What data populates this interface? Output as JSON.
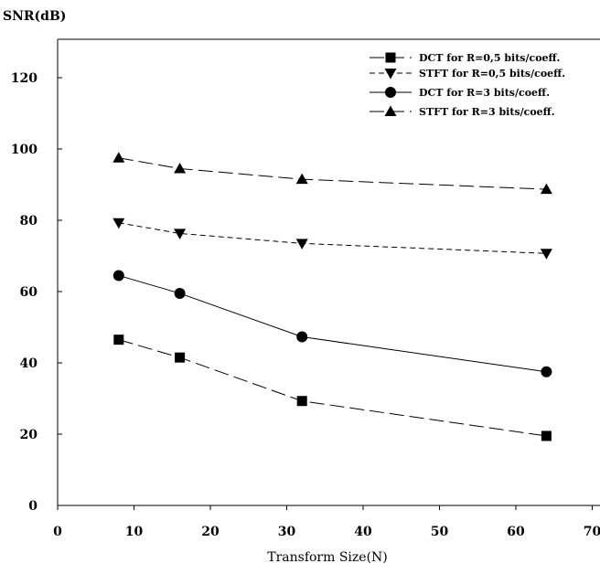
{
  "chart_data": {
    "type": "line",
    "title": "",
    "xlabel": "Transform Size(N)",
    "ylabel": "SNR(dB)",
    "xlim": [
      0,
      70
    ],
    "ylim": [
      0,
      130
    ],
    "xticks": [
      0,
      10,
      20,
      30,
      40,
      50,
      60,
      70
    ],
    "yticks": [
      0,
      20,
      40,
      60,
      80,
      100,
      120
    ],
    "grid": false,
    "legend_position": "top-right",
    "x": [
      8,
      16,
      32,
      64
    ],
    "series": [
      {
        "name": "DCT for R=0,5 bits/coeff.",
        "values": [
          46.5,
          41.5,
          29.3,
          19.5
        ],
        "marker": "square",
        "line_style": "long-dash",
        "color": "#000000"
      },
      {
        "name": "STFT for R=0,5 bits/coeff.",
        "values": [
          79.3,
          76.3,
          73.5,
          70.7
        ],
        "marker": "triangle-down",
        "line_style": "short-dash",
        "color": "#000000"
      },
      {
        "name": "DCT for R=3 bits/coeff.",
        "values": [
          64.5,
          59.5,
          47.3,
          37.5
        ],
        "marker": "circle",
        "line_style": "solid",
        "color": "#000000"
      },
      {
        "name": "STFT for R=3 bits/coeff.",
        "values": [
          97.5,
          94.5,
          91.5,
          88.7
        ],
        "marker": "triangle-up",
        "line_style": "long-dash",
        "color": "#000000"
      }
    ]
  }
}
